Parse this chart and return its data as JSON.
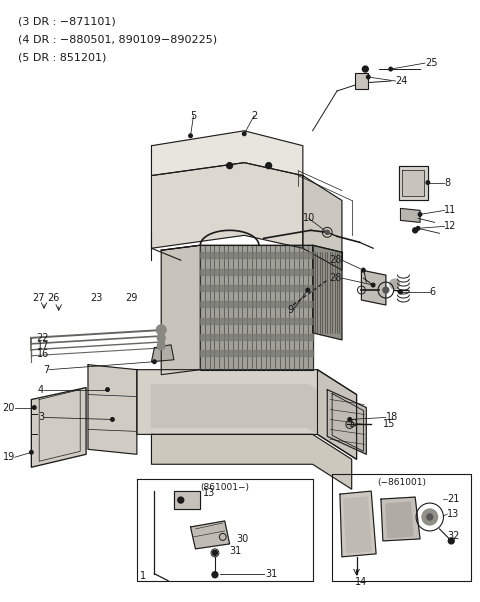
{
  "title_lines": [
    "(3 DR : −871101)",
    "(4 DR : −880501, 890109−890225)",
    "(5 DR : 851201)"
  ],
  "bg_color": "#ffffff",
  "fg_color": "#1a1a1a",
  "fig_width": 4.8,
  "fig_height": 6.02,
  "dpi": 100
}
